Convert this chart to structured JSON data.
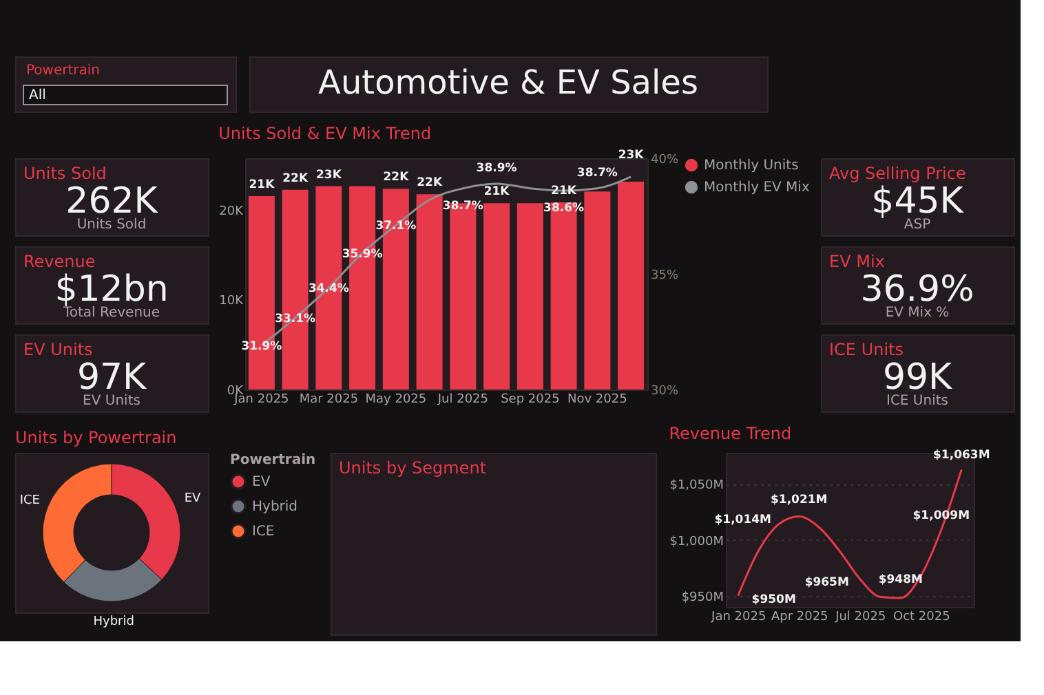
{
  "chart_data": [
    {
      "type": "other",
      "title": "Powertrain",
      "annotations": [
        "All"
      ]
    },
    {
      "type": "other",
      "title": "Automotive & EV Sales"
    },
    {
      "type": "other",
      "title": "Units Sold",
      "annotations": [
        "262K",
        "Units Sold"
      ]
    },
    {
      "type": "other",
      "title": "Revenue",
      "annotations": [
        "$12bn",
        "Total Revenue"
      ]
    },
    {
      "type": "other",
      "title": "EV Units",
      "annotations": [
        "97K",
        "EV Units"
      ]
    },
    {
      "type": "bar",
      "title": "Units Sold & EV Mix Trend",
      "categories": [
        "Jan 2025",
        null,
        "Mar 2025",
        null,
        "May 2025",
        null,
        "Jul 2025",
        null,
        "Sep 2025",
        null,
        "Nov 2025",
        null
      ],
      "series": [
        {
          "name": "Monthly Units",
          "type": "bar",
          "color": "#e8394a",
          "values": [
            21500,
            22200,
            22600,
            22600,
            22300,
            21700,
            20700,
            20700,
            20700,
            20800,
            22000,
            23100
          ],
          "value_labels": [
            "21K",
            "22K",
            "23K",
            null,
            "22K",
            "22K",
            null,
            "21K",
            null,
            "21K",
            null,
            "23K"
          ]
        },
        {
          "name": "Monthly EV Mix",
          "type": "line",
          "axis": "y2",
          "color": "#8c9196",
          "values": [
            31.9,
            33.1,
            34.4,
            35.9,
            37.1,
            38.2,
            38.7,
            38.9,
            38.7,
            38.6,
            38.7,
            39.2
          ],
          "value_labels": [
            "31.9%",
            "33.1%",
            "34.4%",
            "35.9%",
            "37.1%",
            null,
            "38.7%",
            "38.9%",
            null,
            "38.6%",
            "38.7%",
            null
          ]
        }
      ],
      "ylim": [
        0,
        25700
      ],
      "yticks": [
        {
          "value": 0,
          "label": "0K"
        },
        {
          "value": 10000,
          "label": "10K"
        },
        {
          "value": 20000,
          "label": "20K"
        }
      ],
      "y2lim": [
        30,
        40
      ],
      "y2ticks": [
        {
          "value": 30,
          "label": "30%"
        },
        {
          "value": 35,
          "label": "35%"
        },
        {
          "value": 40,
          "label": "40%"
        }
      ],
      "grid": false,
      "legend": "top right",
      "marker": "none",
      "line_style": "solid"
    },
    {
      "type": "other",
      "title": "Avg Selling Price",
      "annotations": [
        "$45K",
        "ASP"
      ]
    },
    {
      "type": "other",
      "title": "EV Mix",
      "annotations": [
        "36.9%",
        "EV Mix %"
      ]
    },
    {
      "type": "other",
      "title": "ICE Units",
      "annotations": [
        "99K",
        "ICE Units"
      ]
    },
    {
      "type": "donut",
      "title": "Units by Powertrain",
      "legend_title": "Powertrain",
      "categories": [
        "EV",
        "Hybrid",
        "ICE"
      ],
      "values": [
        37.0,
        25.2,
        37.8
      ],
      "colors": [
        "#e8394a",
        "#6b747c",
        "#ff6b35"
      ],
      "legend": "right"
    },
    {
      "type": "other",
      "title": "Units by Segment"
    },
    {
      "type": "line",
      "title": "Revenue Trend",
      "categories": [
        "Jan 2025",
        null,
        null,
        "Apr 2025",
        null,
        null,
        "Jul 2025",
        null,
        null,
        "Oct 2025",
        null,
        null
      ],
      "series": [
        {
          "color": "#e8394a",
          "values": [
            950,
            990,
            1014,
            1021,
            1011,
            990,
            965,
            949,
            948,
            968,
            1009,
            1063
          ],
          "value_labels": [
            "$950M",
            null,
            "$1,014M",
            "$1,021M",
            null,
            null,
            "$965M",
            null,
            "$948M",
            null,
            "$1,009M",
            "$1,063M"
          ]
        }
      ],
      "ylim": [
        940,
        1078
      ],
      "yticks": [
        {
          "value": 950,
          "label": "$950M"
        },
        {
          "value": 1000,
          "label": "$1,000M"
        },
        {
          "value": 1050,
          "label": "$1,050M"
        }
      ],
      "grid": "y",
      "marker": "none",
      "line_style": "solid",
      "legend": false
    }
  ]
}
